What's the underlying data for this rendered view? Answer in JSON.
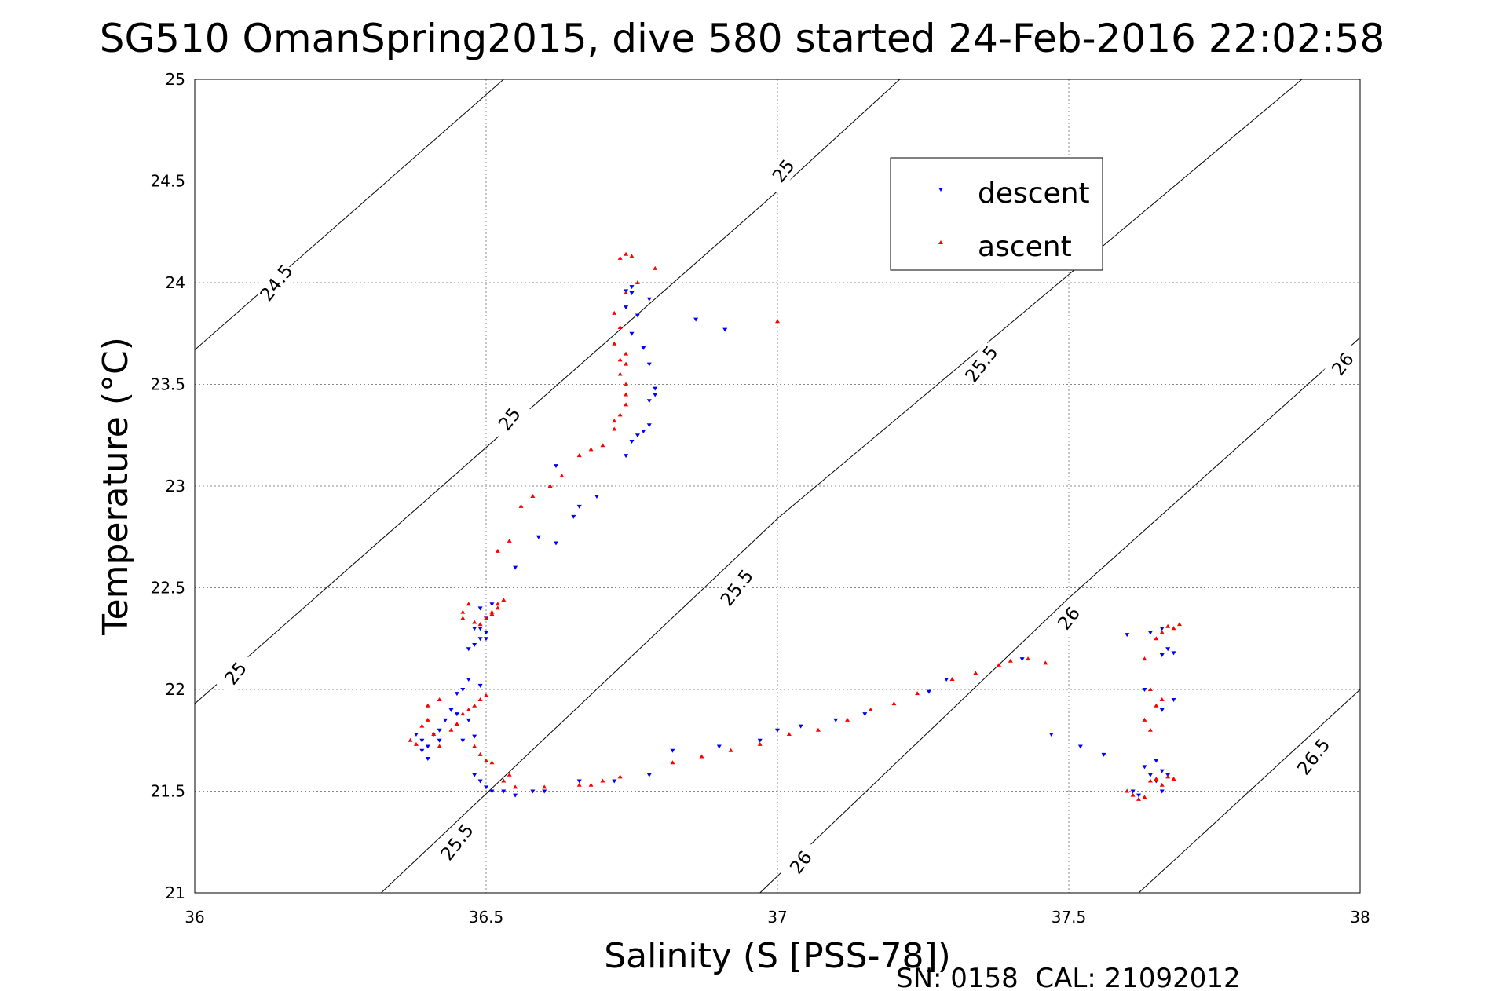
{
  "chart_data": {
    "type": "scatter",
    "title": "SG510 OmanSpring2015, dive 580 started 24-Feb-2016 22:02:58",
    "xlabel": "Salinity (S [PSS-78])",
    "ylabel": "Temperature (°C)",
    "xlim": [
      36,
      38
    ],
    "ylim": [
      21,
      25
    ],
    "xticks": [
      "36",
      "36.5",
      "37",
      "37.5",
      "38"
    ],
    "yticks": [
      "21",
      "21.5",
      "22",
      "22.5",
      "23",
      "23.5",
      "24",
      "24.5",
      "25"
    ],
    "grid": true,
    "legend": {
      "position": "top-right"
    },
    "footer": "SN: 0158  CAL: 21092012",
    "density_contours": [
      {
        "level": "24.5",
        "points": [
          [
            36.0,
            23.67
          ],
          [
            36.53,
            25.0
          ]
        ],
        "labels": [
          {
            "text": "24.5",
            "x": 36.14,
            "y": 24.0
          }
        ]
      },
      {
        "level": "25",
        "points": [
          [
            36.0,
            21.93
          ],
          [
            37.0,
            24.45
          ],
          [
            37.21,
            25.0
          ]
        ],
        "labels": [
          {
            "text": "25",
            "x": 36.07,
            "y": 22.08
          },
          {
            "text": "25",
            "x": 36.54,
            "y": 23.33
          },
          {
            "text": "25",
            "x": 37.01,
            "y": 24.55
          }
        ]
      },
      {
        "level": "25.5",
        "points": [
          [
            36.32,
            21.0
          ],
          [
            37.0,
            22.84
          ],
          [
            37.9,
            25.0
          ]
        ],
        "labels": [
          {
            "text": "25.5",
            "x": 36.45,
            "y": 21.25
          },
          {
            "text": "25.5",
            "x": 36.93,
            "y": 22.5
          },
          {
            "text": "25.5",
            "x": 37.35,
            "y": 23.6
          }
        ]
      },
      {
        "level": "26",
        "points": [
          [
            36.97,
            21.0
          ],
          [
            37.5,
            22.45
          ],
          [
            38.0,
            23.73
          ]
        ],
        "labels": [
          {
            "text": "26",
            "x": 37.04,
            "y": 21.15
          },
          {
            "text": "26",
            "x": 37.5,
            "y": 22.35
          },
          {
            "text": "26",
            "x": 37.97,
            "y": 23.6
          }
        ]
      },
      {
        "level": "26.5",
        "points": [
          [
            37.62,
            21.0
          ],
          [
            38.0,
            22.0
          ]
        ],
        "labels": [
          {
            "text": "26.5",
            "x": 37.92,
            "y": 21.67
          }
        ]
      }
    ],
    "series": [
      {
        "name": "descent",
        "color": "#0000ff",
        "marker": "triangle-down",
        "points": [
          [
            36.38,
            21.78
          ],
          [
            36.39,
            21.75
          ],
          [
            36.39,
            21.7
          ],
          [
            36.4,
            21.72
          ],
          [
            36.4,
            21.66
          ],
          [
            36.41,
            21.78
          ],
          [
            36.42,
            21.8
          ],
          [
            36.42,
            21.75
          ],
          [
            36.43,
            21.85
          ],
          [
            36.44,
            21.9
          ],
          [
            36.45,
            21.98
          ],
          [
            36.46,
            22.0
          ],
          [
            36.47,
            22.05
          ],
          [
            36.49,
            22.02
          ],
          [
            36.45,
            21.88
          ],
          [
            36.47,
            21.85
          ],
          [
            36.48,
            21.77
          ],
          [
            36.46,
            21.75
          ],
          [
            36.47,
            22.2
          ],
          [
            36.48,
            22.22
          ],
          [
            36.49,
            22.25
          ],
          [
            36.5,
            22.25
          ],
          [
            36.5,
            22.28
          ],
          [
            36.49,
            22.3
          ],
          [
            36.48,
            22.3
          ],
          [
            36.5,
            22.35
          ],
          [
            36.49,
            22.4
          ],
          [
            36.51,
            22.42
          ],
          [
            36.48,
            21.58
          ],
          [
            36.49,
            21.55
          ],
          [
            36.5,
            21.52
          ],
          [
            36.51,
            21.5
          ],
          [
            36.53,
            21.5
          ],
          [
            36.55,
            21.48
          ],
          [
            36.58,
            21.5
          ],
          [
            36.6,
            21.5
          ],
          [
            36.66,
            21.55
          ],
          [
            36.72,
            21.55
          ],
          [
            36.78,
            21.58
          ],
          [
            36.55,
            22.6
          ],
          [
            36.59,
            22.75
          ],
          [
            36.62,
            22.72
          ],
          [
            36.65,
            22.85
          ],
          [
            36.69,
            22.95
          ],
          [
            36.66,
            22.9
          ],
          [
            36.62,
            23.1
          ],
          [
            36.74,
            23.15
          ],
          [
            36.75,
            23.22
          ],
          [
            36.76,
            23.25
          ],
          [
            36.77,
            23.27
          ],
          [
            36.78,
            23.3
          ],
          [
            36.78,
            23.42
          ],
          [
            36.79,
            23.45
          ],
          [
            36.79,
            23.48
          ],
          [
            36.78,
            23.6
          ],
          [
            36.77,
            23.68
          ],
          [
            36.75,
            23.75
          ],
          [
            36.76,
            23.84
          ],
          [
            36.74,
            23.88
          ],
          [
            36.75,
            23.95
          ],
          [
            36.74,
            23.96
          ],
          [
            36.75,
            23.98
          ],
          [
            36.78,
            23.92
          ],
          [
            36.86,
            23.82
          ],
          [
            36.91,
            23.77
          ],
          [
            36.82,
            21.7
          ],
          [
            36.9,
            21.72
          ],
          [
            36.97,
            21.75
          ],
          [
            37.0,
            21.8
          ],
          [
            37.04,
            21.82
          ],
          [
            37.1,
            21.85
          ],
          [
            37.15,
            21.88
          ],
          [
            37.26,
            21.99
          ],
          [
            37.29,
            22.05
          ],
          [
            37.42,
            22.15
          ],
          [
            37.47,
            21.78
          ],
          [
            37.52,
            21.72
          ],
          [
            37.56,
            21.68
          ],
          [
            37.6,
            22.27
          ],
          [
            37.64,
            22.28
          ],
          [
            37.66,
            22.3
          ],
          [
            37.67,
            22.2
          ],
          [
            37.68,
            22.18
          ],
          [
            37.66,
            22.17
          ],
          [
            37.63,
            22.0
          ],
          [
            37.68,
            21.95
          ],
          [
            37.66,
            21.9
          ],
          [
            37.65,
            21.65
          ],
          [
            37.66,
            21.6
          ],
          [
            37.64,
            21.58
          ],
          [
            37.63,
            21.62
          ],
          [
            37.65,
            21.55
          ],
          [
            37.67,
            21.58
          ],
          [
            37.66,
            21.5
          ],
          [
            37.61,
            21.5
          ],
          [
            37.62,
            21.48
          ]
        ]
      },
      {
        "name": "ascent",
        "color": "#ff0000",
        "marker": "triangle-up",
        "points": [
          [
            36.37,
            21.75
          ],
          [
            36.38,
            21.73
          ],
          [
            36.39,
            21.82
          ],
          [
            36.4,
            21.85
          ],
          [
            36.4,
            21.92
          ],
          [
            36.42,
            21.95
          ],
          [
            36.41,
            21.78
          ],
          [
            36.42,
            21.72
          ],
          [
            36.44,
            21.8
          ],
          [
            36.45,
            21.83
          ],
          [
            36.46,
            21.88
          ],
          [
            36.47,
            21.9
          ],
          [
            36.48,
            21.92
          ],
          [
            36.49,
            21.95
          ],
          [
            36.5,
            21.97
          ],
          [
            36.48,
            21.72
          ],
          [
            36.49,
            21.68
          ],
          [
            36.5,
            21.65
          ],
          [
            36.51,
            21.64
          ],
          [
            36.46,
            22.35
          ],
          [
            36.46,
            22.38
          ],
          [
            36.47,
            22.42
          ],
          [
            36.48,
            22.33
          ],
          [
            36.49,
            22.32
          ],
          [
            36.5,
            22.35
          ],
          [
            36.51,
            22.38
          ],
          [
            36.52,
            22.4
          ],
          [
            36.52,
            22.42
          ],
          [
            36.53,
            22.44
          ],
          [
            36.51,
            22.37
          ],
          [
            36.52,
            22.68
          ],
          [
            36.54,
            22.73
          ],
          [
            36.56,
            22.9
          ],
          [
            36.58,
            22.95
          ],
          [
            36.61,
            23.0
          ],
          [
            36.63,
            23.05
          ],
          [
            36.66,
            23.15
          ],
          [
            36.68,
            23.18
          ],
          [
            36.7,
            23.2
          ],
          [
            36.72,
            23.28
          ],
          [
            36.72,
            23.32
          ],
          [
            36.73,
            23.35
          ],
          [
            36.74,
            23.4
          ],
          [
            36.74,
            23.45
          ],
          [
            36.74,
            23.5
          ],
          [
            36.73,
            23.55
          ],
          [
            36.74,
            23.6
          ],
          [
            36.73,
            23.62
          ],
          [
            36.74,
            23.65
          ],
          [
            36.72,
            23.7
          ],
          [
            36.73,
            23.78
          ],
          [
            36.72,
            23.85
          ],
          [
            36.74,
            23.95
          ],
          [
            36.76,
            24.0
          ],
          [
            36.79,
            24.07
          ],
          [
            36.73,
            24.12
          ],
          [
            36.74,
            24.14
          ],
          [
            36.75,
            24.13
          ],
          [
            37.0,
            23.81
          ],
          [
            36.53,
            21.55
          ],
          [
            36.54,
            21.58
          ],
          [
            36.55,
            21.52
          ],
          [
            36.6,
            21.52
          ],
          [
            36.66,
            21.53
          ],
          [
            36.68,
            21.53
          ],
          [
            36.7,
            21.55
          ],
          [
            36.73,
            21.57
          ],
          [
            36.82,
            21.64
          ],
          [
            36.87,
            21.67
          ],
          [
            36.92,
            21.7
          ],
          [
            36.97,
            21.73
          ],
          [
            37.02,
            21.78
          ],
          [
            37.07,
            21.8
          ],
          [
            37.12,
            21.85
          ],
          [
            37.16,
            21.9
          ],
          [
            37.2,
            21.93
          ],
          [
            37.24,
            21.98
          ],
          [
            37.3,
            22.05
          ],
          [
            37.34,
            22.08
          ],
          [
            37.38,
            22.12
          ],
          [
            37.4,
            22.14
          ],
          [
            37.43,
            22.15
          ],
          [
            37.46,
            22.13
          ],
          [
            37.6,
            21.5
          ],
          [
            37.61,
            21.48
          ],
          [
            37.62,
            21.46
          ],
          [
            37.63,
            21.47
          ],
          [
            37.64,
            21.55
          ],
          [
            37.65,
            21.56
          ],
          [
            37.66,
            21.53
          ],
          [
            37.67,
            21.57
          ],
          [
            37.68,
            21.56
          ],
          [
            37.63,
            21.85
          ],
          [
            37.64,
            21.8
          ],
          [
            37.65,
            21.92
          ],
          [
            37.66,
            21.95
          ],
          [
            37.64,
            22.0
          ],
          [
            37.63,
            22.15
          ],
          [
            37.65,
            22.25
          ],
          [
            37.66,
            22.28
          ],
          [
            37.67,
            22.31
          ],
          [
            37.68,
            22.3
          ],
          [
            37.69,
            22.32
          ]
        ]
      }
    ]
  }
}
